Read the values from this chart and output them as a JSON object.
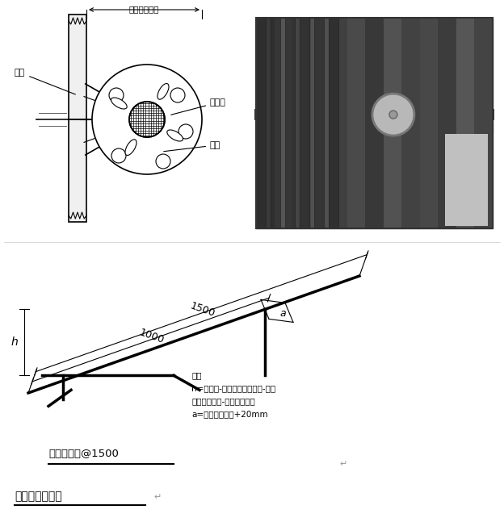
{
  "bg_color": "#ffffff",
  "title_text": "塑料垫块示意图",
  "fig_width": 6.24,
  "fig_height": 6.42,
  "dpi": 100,
  "top_left": {
    "dim_label": "砼保护层厚度",
    "label_zhujin": "主筋",
    "label_suliaoka": "塑料卡",
    "label_hengjin": "横筋"
  },
  "bottom": {
    "note_line1": "注：",
    "note_line2": "h=顶板厚-下网下铁钢筋直径-上网",
    "note_line3": "双向钢筋直径-上下铁保护层",
    "note_line4": "a=顶板钢筋间距+20mm",
    "dim_1500": "1500",
    "dim_1000": "1000",
    "caption": "楼板马凳铁@1500"
  }
}
